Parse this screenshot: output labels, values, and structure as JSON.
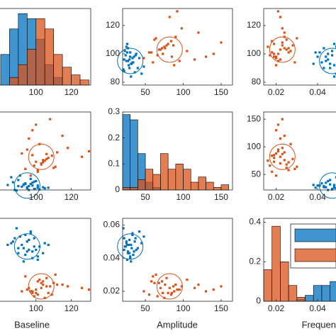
{
  "chart_data": {
    "type": "scatter_matrix",
    "axis_labels": [
      "Baseline",
      "Amplitude",
      "Frequen"
    ],
    "xlims": [
      [
        70,
        131
      ],
      [
        20,
        165
      ],
      [
        0.014,
        0.068
      ]
    ],
    "xticks": [
      [
        100,
        120
      ],
      [
        50,
        100,
        150
      ],
      [
        0.02,
        0.04
      ]
    ],
    "ylims": [
      [
        78,
        132
      ],
      [
        22,
        163
      ],
      [
        0.014,
        0.064
      ]
    ],
    "yticks": [
      [
        80,
        100,
        120
      ],
      [
        50,
        100,
        150
      ],
      [
        0.02,
        0.04,
        0.06
      ]
    ],
    "hist_ylims": [
      [
        0,
        0.3
      ],
      [
        0,
        0.3
      ],
      [
        0,
        0.42
      ]
    ],
    "hist_yticks": [
      [],
      [
        0,
        0.1,
        0.2,
        0.3
      ],
      [
        0,
        0.2,
        0.4
      ]
    ],
    "hist_bins": [
      [
        80,
        85,
        90,
        95,
        100,
        105,
        110,
        115,
        120,
        125,
        130
      ],
      [
        20,
        30,
        40,
        50,
        60,
        70,
        80,
        90,
        100,
        110,
        120,
        130,
        140,
        150,
        160
      ],
      [
        0.014,
        0.018,
        0.022,
        0.026,
        0.03,
        0.034,
        0.038,
        0.042,
        0.046,
        0.05,
        0.054,
        0.058
      ]
    ],
    "legend": "northeast",
    "series": [
      {
        "color": "#0072BD",
        "center": [
          95,
          30,
          0.047
        ],
        "values": [
          [
            92,
            98,
            88,
            101,
            95,
            90,
            97,
            104,
            86,
            99,
            93,
            96,
            100,
            89,
            94,
            107,
            91,
            98,
            102,
            87,
            95,
            97,
            93,
            105,
            90,
            99,
            96,
            84,
            101,
            94
          ],
          [
            28,
            35,
            22,
            30,
            25,
            40,
            33,
            27,
            45,
            24,
            31,
            29,
            38,
            21,
            34,
            26,
            48,
            30,
            23,
            36,
            27,
            42,
            32,
            25,
            29,
            37,
            22,
            31,
            26,
            33
          ],
          [
            0.048,
            0.044,
            0.052,
            0.041,
            0.05,
            0.046,
            0.055,
            0.043,
            0.049,
            0.047,
            0.038,
            0.051,
            0.045,
            0.058,
            0.042,
            0.048,
            0.053,
            0.04,
            0.047,
            0.05,
            0.044,
            0.056,
            0.046,
            0.049,
            0.043,
            0.052,
            0.045,
            0.048,
            0.039,
            0.054
          ]
        ],
        "hist_counts": [
          [
            0.12,
            0.22,
            0.28,
            0.26,
            0.18,
            0.08,
            0.03,
            0,
            0,
            0
          ],
          [
            0.29,
            0.27,
            0.14,
            0.03,
            0.01,
            0,
            0,
            0,
            0,
            0,
            0,
            0,
            0,
            0
          ],
          [
            0,
            0,
            0,
            0,
            0.01,
            0.03,
            0.08,
            0.08,
            0.1,
            0.09,
            0.14,
            0.1
          ]
        ]
      },
      {
        "color": "#D95319",
        "center": [
          103,
          82,
          0.023
        ],
        "values": [
          [
            103,
            98,
            110,
            95,
            106,
            101,
            115,
            92,
            104,
            108,
            99,
            126,
            102,
            97,
            112,
            105,
            100,
            94,
            118,
            107,
            103,
            96,
            109,
            101,
            130,
            104,
            98,
            111,
            106,
            100
          ],
          [
            70,
            85,
            62,
            95,
            78,
            55,
            120,
            88,
            72,
            150,
            66,
            82,
            105,
            48,
            90,
            75,
            140,
            60,
            98,
            80,
            68,
            115,
            84,
            58,
            92,
            76,
            130,
            64,
            87,
            73
          ],
          [
            0.022,
            0.019,
            0.025,
            0.021,
            0.028,
            0.018,
            0.024,
            0.02,
            0.026,
            0.023,
            0.017,
            0.022,
            0.027,
            0.02,
            0.024,
            0.016,
            0.021,
            0.029,
            0.023,
            0.019,
            0.025,
            0.022,
            0.018,
            0.026,
            0.021,
            0.024,
            0.02,
            0.03,
            0.023,
            0.019
          ]
        ],
        "hist_counts": [
          [
            0,
            0.03,
            0.08,
            0.14,
            0.26,
            0.22,
            0.12,
            0.07,
            0.04,
            0.02
          ],
          [
            0.01,
            0.01,
            0.04,
            0.08,
            0.06,
            0.14,
            0.08,
            0.1,
            0.08,
            0.03,
            0.05,
            0.03,
            0.01,
            0.02
          ],
          [
            0.16,
            0.38,
            0.2,
            0.08,
            0.02,
            0,
            0,
            0,
            0,
            0,
            0,
            0
          ]
        ]
      }
    ]
  }
}
